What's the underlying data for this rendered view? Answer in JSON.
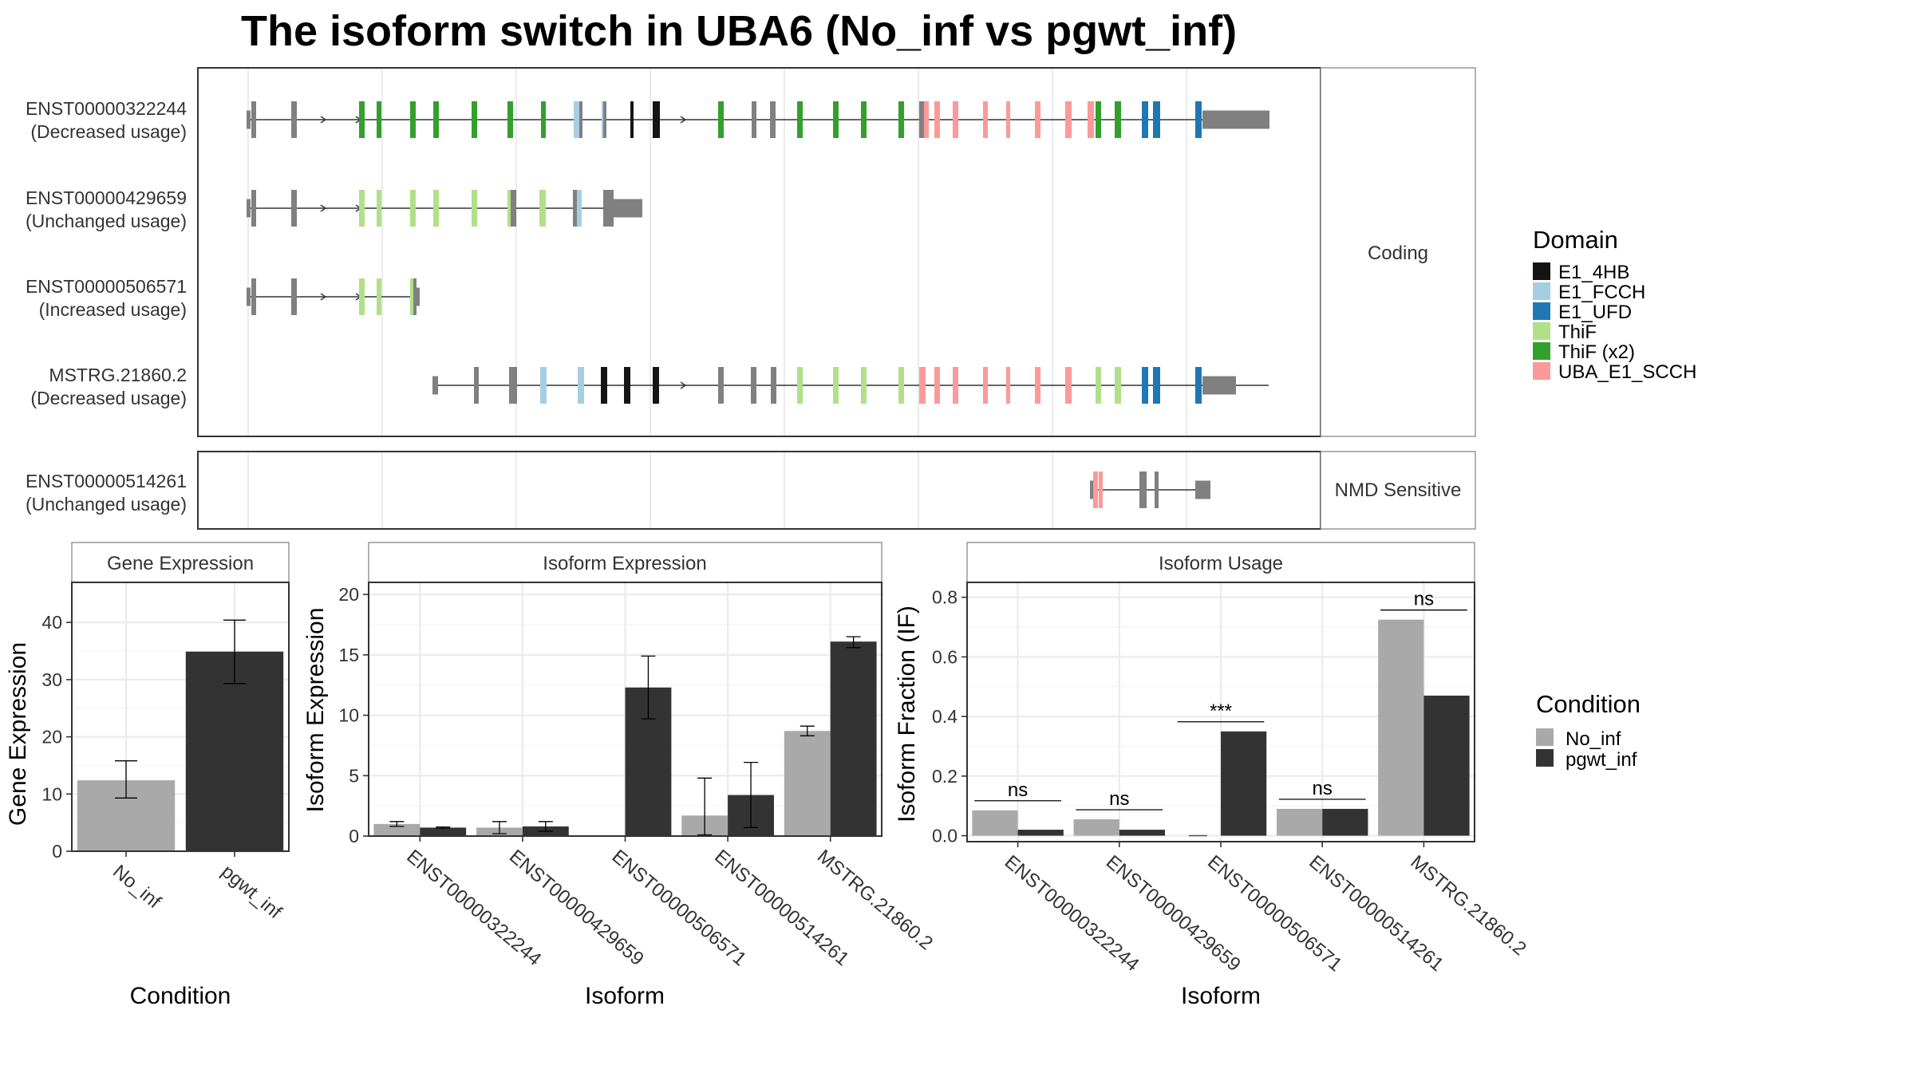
{
  "title": "The isoform switch in UBA6 (No_inf vs pgwt_inf)",
  "colors": {
    "domain": {
      "E1_4HB": "#141414",
      "E1_FCCH": "#a6cee3",
      "E1_UFD": "#1f78b4",
      "ThiF": "#b2df8a",
      "ThiF (x2)": "#33a02c",
      "UBA_E1_SCCH": "#fb9a99"
    },
    "exon": "#808080",
    "No_inf": "#a9a9a9",
    "pgwt_inf": "#333333"
  },
  "transcripts": {
    "groups": [
      {
        "label": "Coding"
      },
      {
        "label": "NMD Sensitive"
      }
    ],
    "rows": [
      {
        "id": "ENST00000322244",
        "status": "(Decreased usage)"
      },
      {
        "id": "ENST00000429659",
        "status": "(Unchanged usage)"
      },
      {
        "id": "ENST00000506571",
        "status": "(Increased usage)"
      },
      {
        "id": "MSTRG.21860.2",
        "status": "(Decreased usage)"
      },
      {
        "id": "ENST00000514261",
        "status": "(Unchanged usage)"
      }
    ],
    "legend": {
      "title": "Domain",
      "items": [
        "E1_4HB",
        "E1_FCCH",
        "E1_UFD",
        "ThiF",
        "ThiF (x2)",
        "UBA_E1_SCCH"
      ]
    }
  },
  "legend_condition": {
    "title": "Condition",
    "items": [
      "No_inf",
      "pgwt_inf"
    ]
  },
  "chart_data": [
    {
      "type": "bar",
      "title": "Gene Expression",
      "xlabel": "Condition",
      "ylabel": "Gene Expression",
      "categories": [
        "No_inf",
        "pgwt_inf"
      ],
      "values": [
        12.4,
        34.9
      ],
      "error": [
        [
          9.3,
          15.8
        ],
        [
          29.3,
          40.4
        ]
      ],
      "ylim": [
        0,
        47
      ],
      "yticks": [
        0,
        10,
        20,
        30,
        40
      ]
    },
    {
      "type": "bar",
      "title": "Isoform Expression",
      "xlabel": "Isoform",
      "ylabel": "Isoform Expression",
      "categories": [
        "ENST00000322244",
        "ENST00000429659",
        "ENST00000506571",
        "ENST00000514261",
        "MSTRG.21860.2"
      ],
      "series": [
        {
          "name": "No_inf",
          "values": [
            1.0,
            0.7,
            0.0,
            1.7,
            8.7
          ],
          "error": [
            [
              0.8,
              1.2
            ],
            [
              0.2,
              1.2
            ],
            [
              0.0,
              0.0
            ],
            [
              0.1,
              4.8
            ],
            [
              8.3,
              9.1
            ]
          ]
        },
        {
          "name": "pgwt_inf",
          "values": [
            0.7,
            0.8,
            12.3,
            3.4,
            16.1
          ],
          "error": [
            [
              0.65,
              0.75
            ],
            [
              0.4,
              1.2
            ],
            [
              9.7,
              14.9
            ],
            [
              0.7,
              6.1
            ],
            [
              15.6,
              16.5
            ]
          ]
        }
      ],
      "ylim": [
        0,
        21
      ],
      "yticks": [
        0,
        5,
        10,
        15,
        20
      ]
    },
    {
      "type": "bar",
      "title": "Isoform Usage",
      "xlabel": "Isoform",
      "ylabel": "Isoform Fraction (IF)",
      "categories": [
        "ENST00000322244",
        "ENST00000429659",
        "ENST00000506571",
        "ENST00000514261",
        "MSTRG.21860.2"
      ],
      "series": [
        {
          "name": "No_inf",
          "values": [
            0.085,
            0.055,
            0.0,
            0.09,
            0.725
          ]
        },
        {
          "name": "pgwt_inf",
          "values": [
            0.02,
            0.02,
            0.35,
            0.09,
            0.47
          ]
        }
      ],
      "significance": [
        "ns",
        "ns",
        "***",
        "ns",
        "ns"
      ],
      "ylim": [
        -0.02,
        0.85
      ],
      "yticks": [
        0.0,
        0.2,
        0.4,
        0.6,
        0.8
      ]
    }
  ]
}
